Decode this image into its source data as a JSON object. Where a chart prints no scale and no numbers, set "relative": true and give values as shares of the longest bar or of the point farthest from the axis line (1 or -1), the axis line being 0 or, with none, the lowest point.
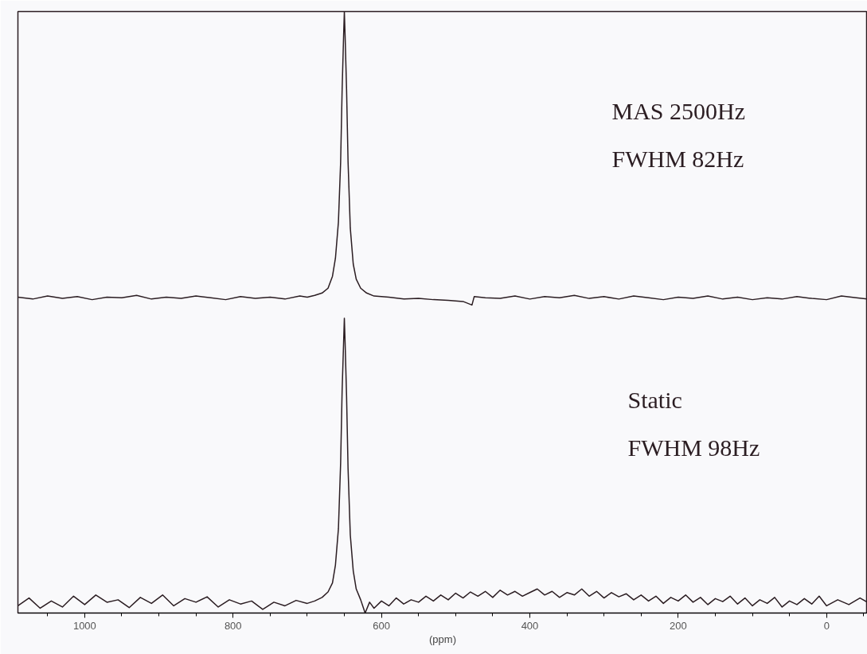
{
  "chart_data": {
    "type": "line",
    "relative": true,
    "xlabel": "(ppm)",
    "xlim": [
      1090,
      -55
    ],
    "xticks": [
      {
        "value": 1050,
        "label": null
      },
      1000,
      {
        "value": 950,
        "label": null
      },
      {
        "value": 900,
        "label": null
      },
      {
        "value": 850,
        "label": null
      },
      800,
      {
        "value": 750,
        "label": null
      },
      {
        "value": 700,
        "label": null
      },
      {
        "value": 650,
        "label": null
      },
      600,
      {
        "value": 550,
        "label": null
      },
      {
        "value": 500,
        "label": null
      },
      {
        "value": 450,
        "label": null
      },
      400,
      {
        "value": 350,
        "label": null
      },
      {
        "value": 300,
        "label": null
      },
      {
        "value": 250,
        "label": null
      },
      200,
      {
        "value": 150,
        "label": null
      },
      {
        "value": 100,
        "label": null
      },
      {
        "value": 50,
        "label": null
      },
      0,
      {
        "value": -50,
        "label": null
      }
    ],
    "grid": false,
    "marker": "none",
    "line_style": "solid",
    "annotations": [
      "MAS 2500Hz",
      "FWHM 82Hz",
      "Static",
      "FWHM 98Hz"
    ],
    "series": [
      {
        "color": "#2b1d22",
        "x": [
          1090,
          1070,
          1050,
          1030,
          1010,
          990,
          970,
          950,
          930,
          910,
          890,
          870,
          850,
          830,
          810,
          790,
          770,
          750,
          730,
          710,
          700,
          690,
          680,
          672,
          666,
          662,
          658,
          655,
          653,
          651,
          650,
          649,
          647,
          645,
          642,
          638,
          634,
          628,
          620,
          610,
          590,
          570,
          550,
          530,
          510,
          490,
          478,
          475,
          460,
          440,
          420,
          400,
          380,
          360,
          340,
          320,
          300,
          280,
          260,
          240,
          220,
          200,
          180,
          160,
          140,
          120,
          100,
          80,
          60,
          40,
          20,
          0,
          -20,
          -40,
          -55
        ],
        "values": [
          0.525,
          0.522,
          0.527,
          0.523,
          0.526,
          0.521,
          0.525,
          0.524,
          0.528,
          0.522,
          0.525,
          0.523,
          0.527,
          0.524,
          0.521,
          0.526,
          0.523,
          0.525,
          0.522,
          0.527,
          0.525,
          0.528,
          0.532,
          0.54,
          0.56,
          0.59,
          0.65,
          0.75,
          0.87,
          0.96,
          1.0,
          0.96,
          0.87,
          0.75,
          0.64,
          0.58,
          0.555,
          0.54,
          0.532,
          0.527,
          0.525,
          0.522,
          0.523,
          0.521,
          0.52,
          0.518,
          0.512,
          0.526,
          0.524,
          0.523,
          0.527,
          0.522,
          0.526,
          0.524,
          0.528,
          0.523,
          0.526,
          0.522,
          0.527,
          0.524,
          0.521,
          0.525,
          0.523,
          0.527,
          0.522,
          0.525,
          0.521,
          0.524,
          0.522,
          0.526,
          0.523,
          0.521,
          0.527,
          0.524,
          0.522
        ]
      },
      {
        "color": "#2b1d22",
        "x": [
          1090,
          1075,
          1060,
          1045,
          1030,
          1015,
          1000,
          985,
          970,
          955,
          940,
          925,
          910,
          895,
          880,
          865,
          850,
          835,
          820,
          805,
          790,
          775,
          760,
          745,
          730,
          715,
          700,
          690,
          680,
          672,
          666,
          662,
          658,
          655,
          653,
          651,
          650,
          649,
          647,
          645,
          642,
          638,
          634,
          628,
          622,
          616,
          610,
          600,
          590,
          580,
          570,
          560,
          550,
          540,
          530,
          520,
          510,
          500,
          490,
          480,
          470,
          460,
          450,
          440,
          430,
          420,
          410,
          400,
          390,
          380,
          370,
          360,
          350,
          340,
          330,
          320,
          310,
          300,
          290,
          280,
          270,
          260,
          250,
          240,
          230,
          220,
          210,
          200,
          190,
          180,
          170,
          160,
          150,
          140,
          130,
          120,
          110,
          100,
          90,
          80,
          70,
          60,
          50,
          40,
          30,
          20,
          10,
          0,
          -15,
          -30,
          -45,
          -55
        ],
        "values": [
          0.012,
          0.025,
          0.008,
          0.02,
          0.01,
          0.028,
          0.014,
          0.03,
          0.018,
          0.022,
          0.009,
          0.026,
          0.016,
          0.03,
          0.012,
          0.024,
          0.018,
          0.027,
          0.01,
          0.022,
          0.015,
          0.02,
          0.006,
          0.018,
          0.012,
          0.021,
          0.016,
          0.02,
          0.026,
          0.035,
          0.05,
          0.08,
          0.14,
          0.25,
          0.37,
          0.45,
          0.49,
          0.45,
          0.36,
          0.24,
          0.13,
          0.07,
          0.04,
          0.022,
          0.0,
          0.018,
          0.008,
          0.02,
          0.012,
          0.025,
          0.015,
          0.022,
          0.018,
          0.028,
          0.02,
          0.03,
          0.022,
          0.033,
          0.025,
          0.035,
          0.028,
          0.036,
          0.026,
          0.038,
          0.03,
          0.036,
          0.028,
          0.034,
          0.04,
          0.03,
          0.036,
          0.026,
          0.034,
          0.03,
          0.04,
          0.028,
          0.036,
          0.025,
          0.034,
          0.027,
          0.032,
          0.022,
          0.03,
          0.02,
          0.028,
          0.016,
          0.026,
          0.02,
          0.03,
          0.018,
          0.026,
          0.014,
          0.024,
          0.019,
          0.028,
          0.015,
          0.025,
          0.012,
          0.022,
          0.016,
          0.026,
          0.01,
          0.02,
          0.014,
          0.024,
          0.015,
          0.028,
          0.012,
          0.022,
          0.014,
          0.025,
          0.018
        ]
      }
    ]
  }
}
